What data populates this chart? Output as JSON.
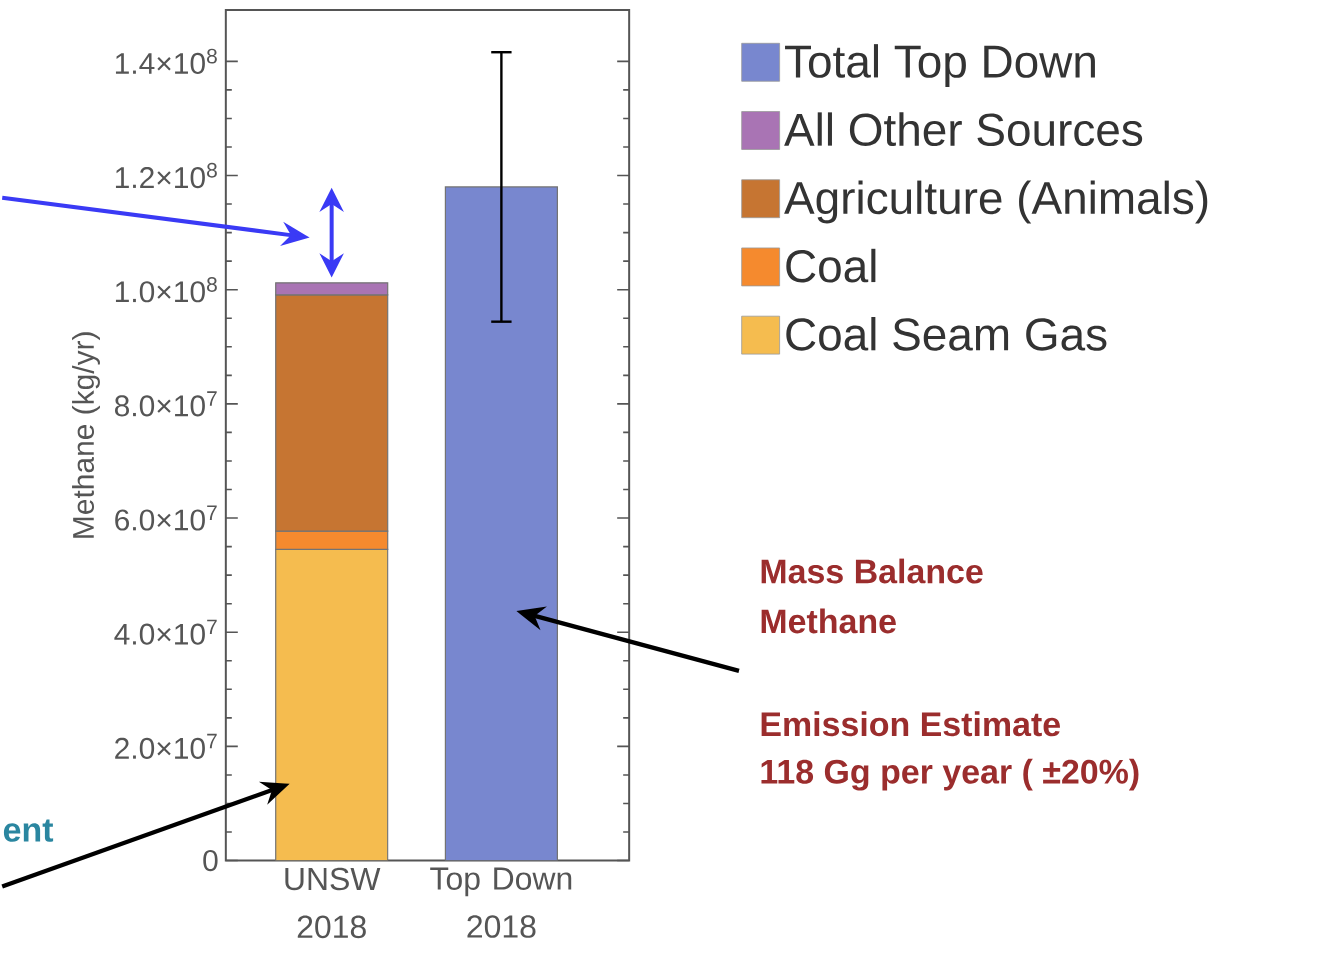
{
  "chart_data": {
    "type": "bar",
    "stacked": true,
    "ylabel": "Methane (kg/yr)",
    "categories": [
      "UNSW 2018",
      "Top Down 2018"
    ],
    "series": [
      {
        "name": "Coal Seam Gas",
        "color": "#f5bc4f",
        "values": [
          54500000,
          null
        ]
      },
      {
        "name": "Coal",
        "color": "#f58a2e",
        "values": [
          3200000,
          null
        ]
      },
      {
        "name": "Agriculture (Animals)",
        "color": "#c67532",
        "values": [
          41400000,
          null
        ]
      },
      {
        "name": "All Other Sources",
        "color": "#a974b4",
        "values": [
          2100000,
          null
        ]
      },
      {
        "name": "Total Top Down",
        "color": "#7887cf",
        "values": [
          null,
          118000000
        ],
        "errors": [
          null,
          23600000
        ]
      }
    ],
    "ylim": [
      0,
      149000000
    ],
    "yticks": [
      0,
      {
        "value": 20000000,
        "label": "2.0×10$^{7}$"
      },
      {
        "value": 40000000,
        "label": "4.0×10$^{7}$"
      },
      {
        "value": 60000000,
        "label": "6.0×10$^{7}$"
      },
      {
        "value": 80000000,
        "label": "8.0×10$^{7}$"
      },
      {
        "value": 100000000,
        "label": "1.0×10$^{8}$"
      },
      {
        "value": 120000000,
        "label": "1.2×10$^{8}$"
      },
      {
        "value": 140000000,
        "label": "1.4×10$^{8}$"
      }
    ],
    "legend": "right",
    "annotations": [
      "Mass Balance",
      "Methane",
      "Emission Estimate",
      "118 Gg per year ( ±20%)",
      "ent"
    ]
  }
}
